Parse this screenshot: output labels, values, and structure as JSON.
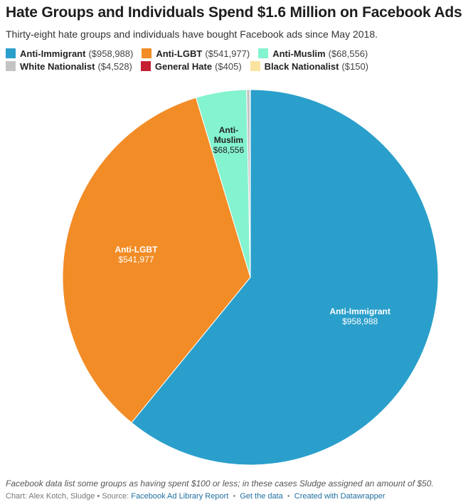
{
  "header": {
    "title": "Hate Groups and Individuals Spend $1.6 Million on Facebook Ads",
    "subtitle": "Thirty-eight hate groups and individuals have bought Facebook ads since May 2018."
  },
  "legend": {
    "items": [
      {
        "name": "Anti-Immigrant",
        "value_text": "($958,988)",
        "color": "#2a9fcb"
      },
      {
        "name": "Anti-LGBT",
        "value_text": "($541,977)",
        "color": "#f28c26"
      },
      {
        "name": "Anti-Muslim",
        "value_text": "($68,556)",
        "color": "#84f3cf"
      },
      {
        "name": "White Nationalist",
        "value_text": "($4,528)",
        "color": "#c4c4c4"
      },
      {
        "name": "General Hate",
        "value_text": "($405)",
        "color": "#c41f33"
      },
      {
        "name": "Black Nationalist",
        "value_text": "($150)",
        "color": "#fbe4a0"
      }
    ]
  },
  "chart_data": {
    "type": "pie",
    "title": "Hate Groups and Individuals Spend $1.6 Million on Facebook Ads",
    "categories": [
      "Anti-Immigrant",
      "Anti-LGBT",
      "Anti-Muslim",
      "White Nationalist",
      "General Hate",
      "Black Nationalist"
    ],
    "values": [
      958988,
      541977,
      68556,
      4528,
      405,
      150
    ],
    "colors": [
      "#2a9fcb",
      "#f28c26",
      "#84f3cf",
      "#c4c4c4",
      "#c41f33",
      "#fbe4a0"
    ],
    "slice_labels": [
      {
        "lines": [
          "Anti-Immigrant"
        ],
        "value": "$958,988",
        "color": "#ffffff"
      },
      {
        "lines": [
          "Anti-LGBT"
        ],
        "value": "$541,977",
        "color": "#ffffff"
      },
      {
        "lines": [
          "Anti-",
          "Muslim"
        ],
        "value": "$68,556",
        "color": "#222222"
      }
    ],
    "legend_position": "top"
  },
  "footer": {
    "note": "Facebook data list some groups as having spent $100 or less; in these cases Sludge assigned an amount of $50.",
    "credit_prefix": "Chart: Alex Kotch, Sludge • Source:",
    "source_link": "Facebook Ad Library Report",
    "get_data": "Get the data",
    "created_with": "Created with Datawrapper"
  }
}
